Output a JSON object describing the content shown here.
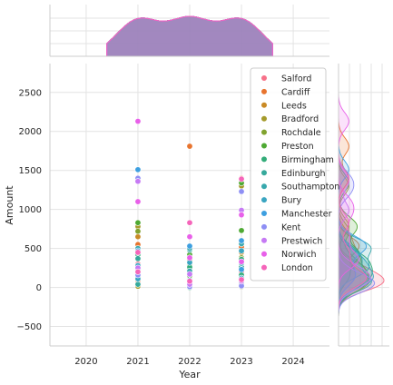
{
  "chart_data": {
    "type": "scatter",
    "subtype": "jointplot-with-kde-marginals",
    "xlabel": "Year",
    "ylabel": "Amount",
    "x_ticks": [
      "2020",
      "2021",
      "2022",
      "2023",
      "2024"
    ],
    "y_ticks": [
      "−500",
      "0",
      "500",
      "1000",
      "1500",
      "2000",
      "2500"
    ],
    "xlim": [
      2019.3,
      2024.7
    ],
    "ylim": [
      -750,
      2870
    ],
    "grid": true,
    "legend_position": "upper-right",
    "series": [
      {
        "name": "Salford",
        "color": "#f77189",
        "points": [
          [
            2021,
            300
          ],
          [
            2021,
            60
          ],
          [
            2022,
            120
          ],
          [
            2022,
            20
          ],
          [
            2023,
            200
          ],
          [
            2023,
            40
          ]
        ]
      },
      {
        "name": "Cardiff",
        "color": "#e8742e",
        "points": [
          [
            2021,
            550
          ],
          [
            2021,
            90
          ],
          [
            2022,
            1810
          ],
          [
            2022,
            230
          ],
          [
            2023,
            1400
          ],
          [
            2023,
            520
          ]
        ]
      },
      {
        "name": "Leeds",
        "color": "#c98a25",
        "points": [
          [
            2021,
            650
          ],
          [
            2021,
            180
          ],
          [
            2022,
            350
          ],
          [
            2022,
            60
          ],
          [
            2023,
            450
          ],
          [
            2023,
            140
          ]
        ]
      },
      {
        "name": "Bradford",
        "color": "#a59b2c",
        "points": [
          [
            2021,
            780
          ],
          [
            2021,
            15
          ],
          [
            2022,
            280
          ],
          [
            2022,
            100
          ],
          [
            2023,
            1300
          ],
          [
            2023,
            80
          ]
        ]
      },
      {
        "name": "Rochdale",
        "color": "#81a32f",
        "points": [
          [
            2021,
            720
          ],
          [
            2021,
            210
          ],
          [
            2022,
            190
          ],
          [
            2022,
            35
          ],
          [
            2023,
            380
          ],
          [
            2023,
            10
          ]
        ]
      },
      {
        "name": "Preston",
        "color": "#4ea933",
        "points": [
          [
            2021,
            830
          ],
          [
            2021,
            430
          ],
          [
            2022,
            420
          ],
          [
            2022,
            150
          ],
          [
            2023,
            1340
          ],
          [
            2023,
            730
          ]
        ]
      },
      {
        "name": "Birmingham",
        "color": "#33ac79",
        "points": [
          [
            2021,
            420
          ],
          [
            2021,
            130
          ],
          [
            2022,
            260
          ],
          [
            2022,
            0
          ],
          [
            2023,
            360
          ],
          [
            2023,
            160
          ]
        ]
      },
      {
        "name": "Edinburgh",
        "color": "#36a99b",
        "points": [
          [
            2021,
            370
          ],
          [
            2021,
            40
          ],
          [
            2022,
            480
          ],
          [
            2022,
            70
          ],
          [
            2023,
            260
          ],
          [
            2023,
            60
          ]
        ]
      },
      {
        "name": "Southampton",
        "color": "#38a8ad",
        "points": [
          [
            2021,
            500
          ],
          [
            2021,
            230
          ],
          [
            2022,
            500
          ],
          [
            2022,
            210
          ],
          [
            2023,
            560
          ],
          [
            2023,
            310
          ]
        ]
      },
      {
        "name": "Bury",
        "color": "#3aa5c1",
        "points": [
          [
            2021,
            280
          ],
          [
            2021,
            110
          ],
          [
            2022,
            320
          ],
          [
            2022,
            50
          ],
          [
            2023,
            470
          ],
          [
            2023,
            120
          ]
        ]
      },
      {
        "name": "Manchester",
        "color": "#3d9fe0",
        "points": [
          [
            2021,
            1510
          ],
          [
            2021,
            470
          ],
          [
            2022,
            530
          ],
          [
            2022,
            90
          ],
          [
            2023,
            600
          ],
          [
            2023,
            230
          ]
        ]
      },
      {
        "name": "Kent",
        "color": "#8e8ff4",
        "points": [
          [
            2021,
            1400
          ],
          [
            2021,
            160
          ],
          [
            2022,
            60
          ],
          [
            2022,
            10
          ],
          [
            2023,
            1230
          ],
          [
            2023,
            20
          ]
        ]
      },
      {
        "name": "Prestwich",
        "color": "#c67af4",
        "points": [
          [
            2021,
            1360
          ],
          [
            2021,
            250
          ],
          [
            2022,
            170
          ],
          [
            2022,
            40
          ],
          [
            2023,
            990
          ],
          [
            2023,
            80
          ]
        ]
      },
      {
        "name": "Norwich",
        "color": "#e860e9",
        "points": [
          [
            2021,
            2130
          ],
          [
            2021,
            1100
          ],
          [
            2022,
            650
          ],
          [
            2022,
            380
          ],
          [
            2023,
            930
          ],
          [
            2023,
            330
          ]
        ]
      },
      {
        "name": "London",
        "color": "#f565ba",
        "points": [
          [
            2021,
            450
          ],
          [
            2021,
            200
          ],
          [
            2022,
            830
          ],
          [
            2022,
            80
          ],
          [
            2023,
            1390
          ],
          [
            2023,
            100
          ]
        ]
      }
    ]
  }
}
